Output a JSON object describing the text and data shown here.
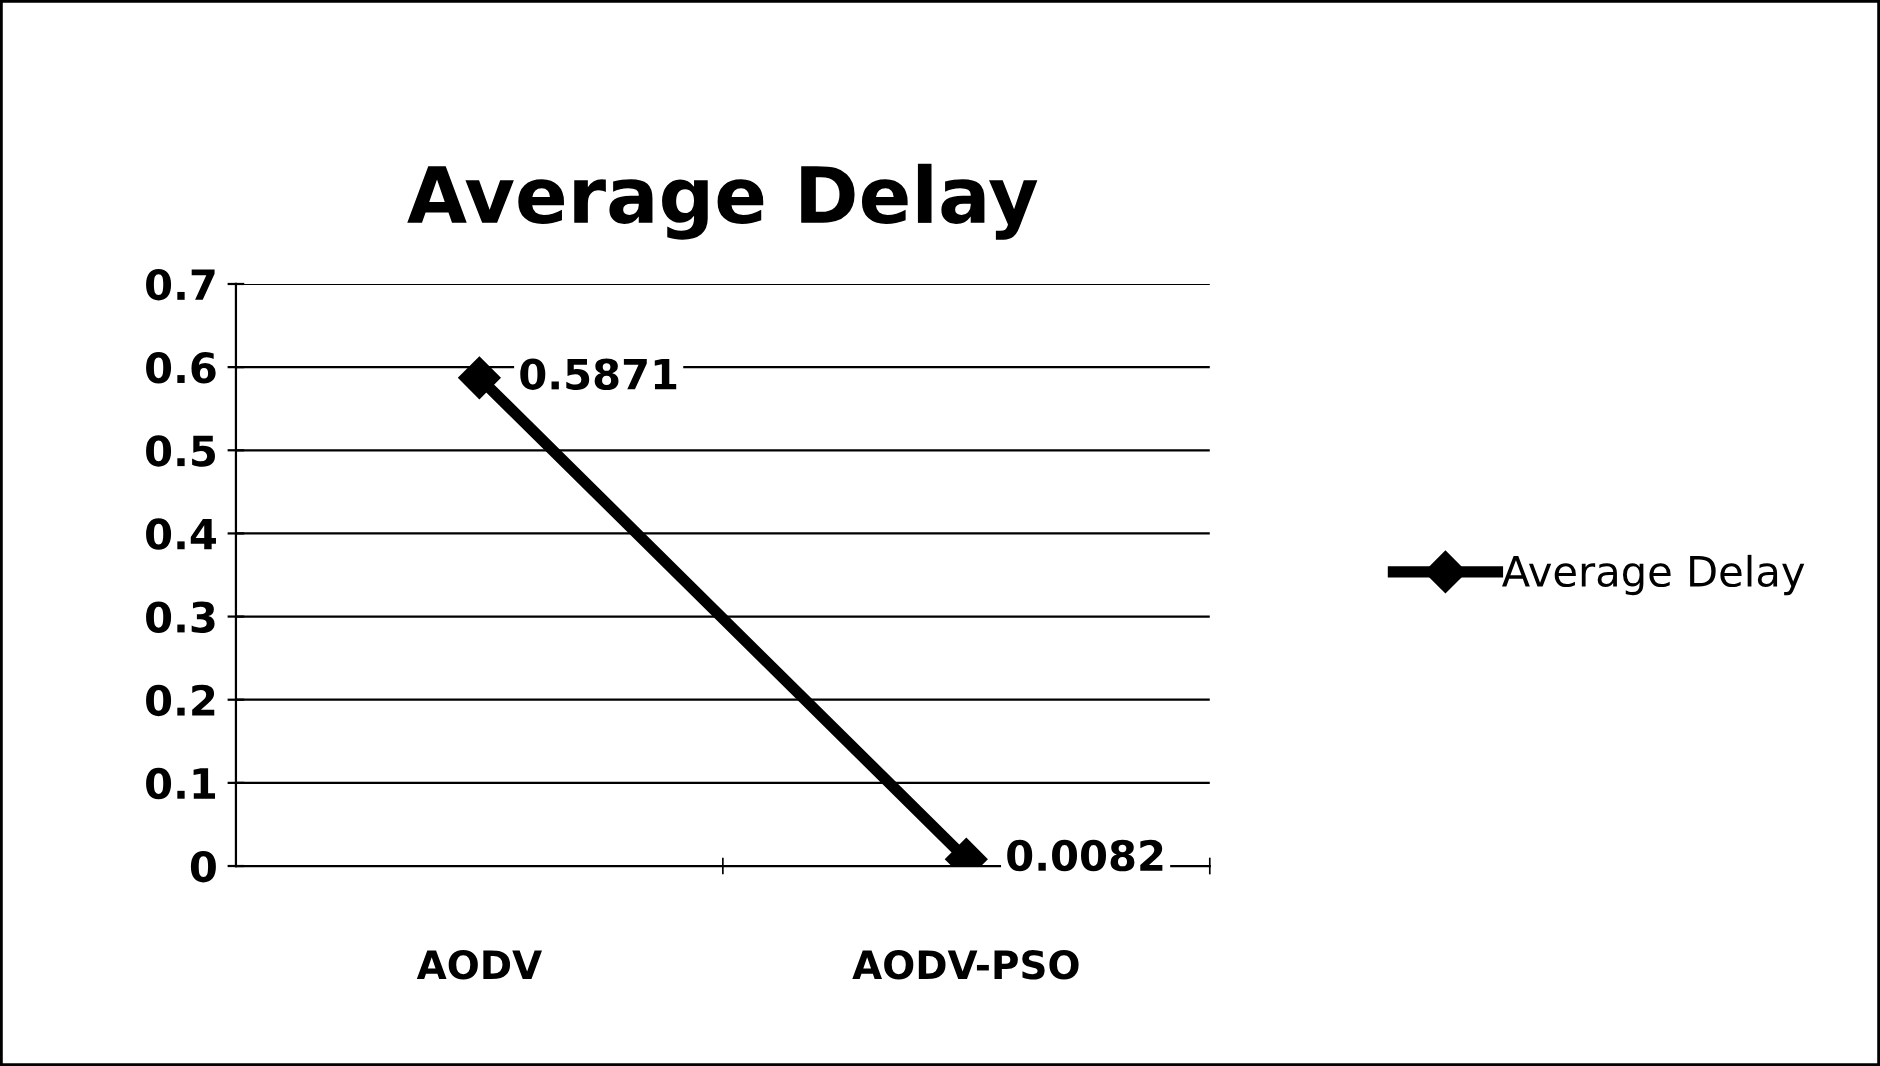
{
  "chart_data": {
    "type": "line",
    "title": "Average Delay",
    "categories": [
      "AODV",
      "AODV-PSO"
    ],
    "series": [
      {
        "name": "Average Delay",
        "color": "#000000",
        "values": [
          0.5871,
          0.0082
        ]
      }
    ],
    "ylim": [
      0,
      0.7
    ],
    "yticks": [
      0,
      0.1,
      0.2,
      0.3,
      0.4,
      0.5,
      0.6,
      0.7
    ],
    "grid": "y",
    "legend": "right",
    "marker": "diamond",
    "line_style": "solid",
    "data_labels": true
  }
}
